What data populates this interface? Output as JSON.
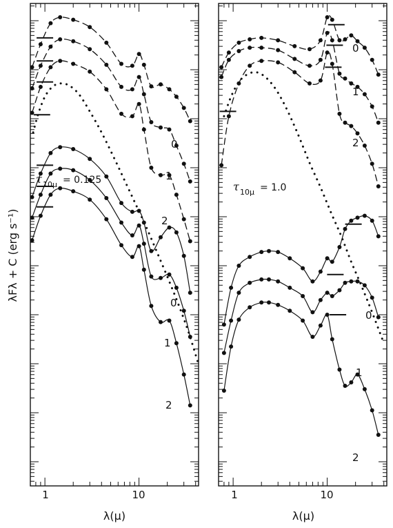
{
  "chart_data": [
    {
      "type": "line",
      "panel": "left",
      "xscale": "log",
      "xlim": [
        0.7,
        43
      ],
      "x_ticklabels": [
        "1",
        "10"
      ],
      "xlabel": "λ(μ)",
      "ylabel": "λFλ + C (erg s⁻¹)",
      "yscale": "log (arbitrary offsets)",
      "annotation": {
        "symbol": "τ",
        "subscript": "10μ",
        "value": "= 0.125"
      },
      "curve_labels": [
        "0",
        "1",
        "2",
        "0",
        "1",
        "2"
      ],
      "series": [
        {
          "style": "dashed",
          "tag": "0",
          "x": [
            0.73,
            0.9,
            1.15,
            1.45,
            2,
            3,
            4.5,
            6.5,
            8.5,
            10,
            11.3,
            13.5,
            17,
            21,
            25,
            30,
            35
          ],
          "y": [
            9.05,
            9.52,
            9.95,
            10.07,
            10.02,
            9.87,
            9.55,
            9.12,
            9.08,
            9.32,
            9.1,
            8.66,
            8.7,
            8.6,
            8.45,
            8.22,
            7.95
          ]
        },
        {
          "style": "dashed",
          "tag": "1",
          "x": [
            0.73,
            0.9,
            1.15,
            1.45,
            2,
            3,
            4.5,
            6.5,
            8.5,
            10,
            11.3,
            13.5,
            17,
            21,
            25,
            30,
            35
          ],
          "y": [
            8.62,
            9.08,
            9.47,
            9.62,
            9.58,
            9.42,
            9.1,
            8.65,
            8.6,
            8.85,
            8.5,
            7.93,
            7.82,
            7.78,
            7.45,
            7.08,
            6.72
          ]
        },
        {
          "style": "dashed",
          "tag": "2",
          "x": [
            0.73,
            0.9,
            1.15,
            1.45,
            2,
            3,
            4.5,
            6.5,
            8.5,
            10,
            11.3,
            13.5,
            17,
            21,
            25,
            30,
            35
          ],
          "y": [
            8.12,
            8.65,
            9.05,
            9.18,
            9.12,
            8.96,
            8.6,
            8.1,
            8.05,
            8.3,
            7.78,
            7.0,
            6.85,
            6.85,
            6.45,
            5.95,
            5.5
          ]
        },
        {
          "style": "dotted",
          "tag": "",
          "x": [
            0.75,
            0.85,
            1.0,
            1.2,
            1.45,
            1.8,
            2.3,
            3,
            4,
            5.5,
            7,
            9,
            12,
            16,
            21,
            27,
            34,
            42
          ],
          "y": [
            7.72,
            8.1,
            8.45,
            8.65,
            8.72,
            8.68,
            8.5,
            8.15,
            7.72,
            7.18,
            6.75,
            6.3,
            5.78,
            5.22,
            4.68,
            4.15,
            3.62,
            3.05
          ]
        },
        {
          "style": "solid",
          "tag": "0",
          "x": [
            0.73,
            0.9,
            1.15,
            1.45,
            2,
            3,
            4.5,
            6.5,
            8.5,
            10,
            11.3,
            13.5,
            17,
            21,
            25,
            30,
            35
          ],
          "y": [
            6.4,
            6.88,
            7.3,
            7.42,
            7.38,
            7.18,
            6.82,
            6.28,
            6.1,
            6.12,
            5.88,
            5.3,
            5.58,
            5.78,
            5.68,
            5.2,
            4.45
          ]
        },
        {
          "style": "solid",
          "tag": "1",
          "x": [
            0.73,
            0.9,
            1.15,
            1.45,
            2,
            3,
            4.5,
            6.5,
            8.5,
            10,
            11.3,
            13.5,
            17,
            21,
            25,
            30,
            35
          ],
          "y": [
            5.98,
            6.45,
            6.88,
            6.98,
            6.95,
            6.75,
            6.38,
            5.88,
            5.62,
            5.82,
            5.45,
            4.78,
            4.75,
            4.82,
            4.55,
            4.08,
            3.55
          ]
        },
        {
          "style": "solid",
          "tag": "2",
          "x": [
            0.73,
            0.9,
            1.15,
            1.45,
            2,
            3,
            4.5,
            6.5,
            8.5,
            10,
            11.3,
            13.5,
            17,
            21,
            25,
            30,
            35
          ],
          "y": [
            5.52,
            6.02,
            6.45,
            6.58,
            6.52,
            6.35,
            5.95,
            5.42,
            5.18,
            5.4,
            4.92,
            4.18,
            3.85,
            3.88,
            3.42,
            2.78,
            2.15
          ]
        }
      ],
      "markers": [
        {
          "x": 1,
          "y": 9.65
        },
        {
          "x": 1,
          "y": 9.18
        },
        {
          "x": 1,
          "y": 8.75
        },
        {
          "x": 0.93,
          "y": 8.08
        },
        {
          "x": 1,
          "y": 7.05
        },
        {
          "x": 1,
          "y": 6.62
        },
        {
          "x": 1,
          "y": 6.2
        }
      ]
    },
    {
      "type": "line",
      "panel": "right",
      "xscale": "log",
      "xlim": [
        0.7,
        43
      ],
      "x_ticklabels": [
        "1",
        "10"
      ],
      "xlabel": "λ(μ)",
      "annotation": {
        "symbol": "τ",
        "subscript": "10μ",
        "value": "= 1.0"
      },
      "curve_labels": [
        "0",
        "1",
        "2",
        "0",
        "1",
        "2"
      ],
      "series": [
        {
          "style": "dashed",
          "tag": "0",
          "x": [
            0.75,
            0.9,
            1.15,
            1.5,
            2,
            3,
            4.5,
            6.5,
            8.5,
            10,
            11.3,
            13.5,
            15.5,
            18,
            21,
            25,
            30,
            35
          ],
          "y": [
            9.05,
            9.35,
            9.55,
            9.62,
            9.65,
            9.6,
            9.48,
            9.42,
            9.6,
            10.07,
            10.02,
            9.6,
            9.62,
            9.7,
            9.58,
            9.45,
            9.2,
            8.9
          ]
        },
        {
          "style": "dashed",
          "tag": "1",
          "x": [
            0.75,
            0.9,
            1.15,
            1.5,
            2,
            3,
            4.5,
            6.5,
            8.5,
            10,
            11.3,
            13.5,
            15.5,
            18,
            21,
            25,
            30,
            35
          ],
          "y": [
            8.85,
            9.2,
            9.38,
            9.45,
            9.45,
            9.4,
            9.22,
            9.08,
            9.2,
            9.75,
            9.6,
            8.92,
            8.82,
            8.72,
            8.65,
            8.5,
            8.25,
            7.92
          ]
        },
        {
          "style": "dashed",
          "tag": "2",
          "x": [
            0.75,
            0.9,
            1.15,
            1.5,
            2,
            3,
            4.5,
            6.5,
            8.5,
            10,
            11.3,
            13.5,
            15.5,
            18,
            21,
            25,
            30,
            35
          ],
          "y": [
            7.05,
            8.05,
            8.72,
            9.08,
            9.18,
            9.15,
            8.95,
            8.72,
            8.78,
            9.35,
            9.12,
            8.1,
            7.92,
            7.85,
            7.7,
            7.45,
            7.08,
            6.62
          ]
        },
        {
          "style": "dotted",
          "tag": "",
          "x": [
            0.8,
            0.95,
            1.15,
            1.4,
            1.75,
            2.2,
            2.8,
            3.6,
            4.8,
            6.5,
            8.5,
            11,
            14,
            18,
            23,
            30,
            40
          ],
          "y": [
            8.05,
            8.45,
            8.75,
            8.9,
            8.95,
            8.85,
            8.62,
            8.25,
            7.72,
            7.1,
            6.6,
            6.08,
            5.62,
            5.08,
            4.6,
            4.05,
            3.42
          ]
        },
        {
          "style": "solid",
          "tag": "0",
          "x": [
            0.8,
            0.95,
            1.15,
            1.5,
            2,
            2.4,
            3,
            4,
            5.5,
            7,
            8.5,
            10,
            11.3,
            13.5,
            15.5,
            18,
            21,
            25,
            30,
            35
          ],
          "y": [
            3.8,
            4.55,
            5.0,
            5.18,
            5.28,
            5.3,
            5.28,
            5.15,
            4.95,
            4.68,
            4.88,
            5.15,
            5.08,
            5.38,
            5.75,
            5.92,
            5.98,
            6.02,
            5.92,
            5.6
          ]
        },
        {
          "style": "solid",
          "tag": "1",
          "x": [
            0.8,
            0.95,
            1.15,
            1.5,
            2,
            2.4,
            3,
            4,
            5.5,
            7,
            8.5,
            10,
            11.3,
            13.5,
            15.5,
            18,
            21,
            25,
            30,
            35
          ],
          "y": [
            3.22,
            3.88,
            4.45,
            4.65,
            4.72,
            4.72,
            4.68,
            4.55,
            4.38,
            4.05,
            4.3,
            4.45,
            4.38,
            4.5,
            4.65,
            4.68,
            4.68,
            4.6,
            4.35,
            3.95
          ]
        },
        {
          "style": "solid",
          "tag": "2",
          "x": [
            0.8,
            0.95,
            1.15,
            1.5,
            2,
            2.4,
            3,
            4,
            5.5,
            7,
            8.5,
            10,
            11.3,
            13.5,
            15.5,
            18,
            21,
            25,
            30,
            35
          ],
          "y": [
            2.45,
            3.35,
            3.9,
            4.15,
            4.25,
            4.25,
            4.2,
            4.08,
            3.88,
            3.55,
            3.78,
            4.0,
            3.5,
            2.88,
            2.55,
            2.62,
            2.78,
            2.48,
            2.05,
            1.55
          ]
        }
      ],
      "markers": [
        {
          "x": 12.5,
          "y": 9.92
        },
        {
          "x": 12.0,
          "y": 9.5
        },
        {
          "x": 11.6,
          "y": 9.05
        },
        {
          "x": 0.88,
          "y": 8.15
        },
        {
          "x": 19,
          "y": 5.85
        },
        {
          "x": 12.2,
          "y": 4.82
        },
        {
          "x": 13.0,
          "y": 4.0
        }
      ]
    }
  ]
}
